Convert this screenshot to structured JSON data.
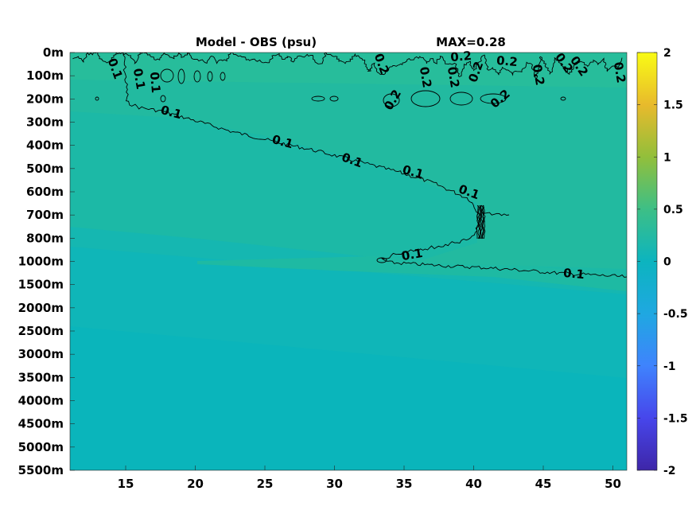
{
  "chart_data": {
    "type": "heatmap",
    "title": "Model - OBS (psu)",
    "subtitle": "MAX=0.28",
    "x_ticks": [
      15,
      20,
      25,
      30,
      35,
      40,
      45,
      50
    ],
    "x_range": [
      11,
      51
    ],
    "y_ticks": [
      "0m",
      "100m",
      "200m",
      "300m",
      "400m",
      "500m",
      "600m",
      "700m",
      "800m",
      "1000m",
      "1500m",
      "2000m",
      "2500m",
      "3000m",
      "3500m",
      "4000m",
      "4500m",
      "5000m",
      "5500m"
    ],
    "colorbar": {
      "range": [
        -2,
        2
      ],
      "ticks": [
        "2",
        "1.5",
        "1",
        "0.5",
        "0",
        "-0.5",
        "-1",
        "-1.5",
        "-2"
      ],
      "colormap": "parula"
    },
    "contour_levels": [
      0.1,
      0.2
    ],
    "contour_labels": {
      "level_0_1": "0.1",
      "level_0_2": "0.2"
    },
    "colors": {
      "surface": "#26bc9c",
      "upper": "#20b9a4",
      "mid": "#17b8ad",
      "deep": "#0fb6b8",
      "bottom": "#0ab5bb"
    }
  }
}
